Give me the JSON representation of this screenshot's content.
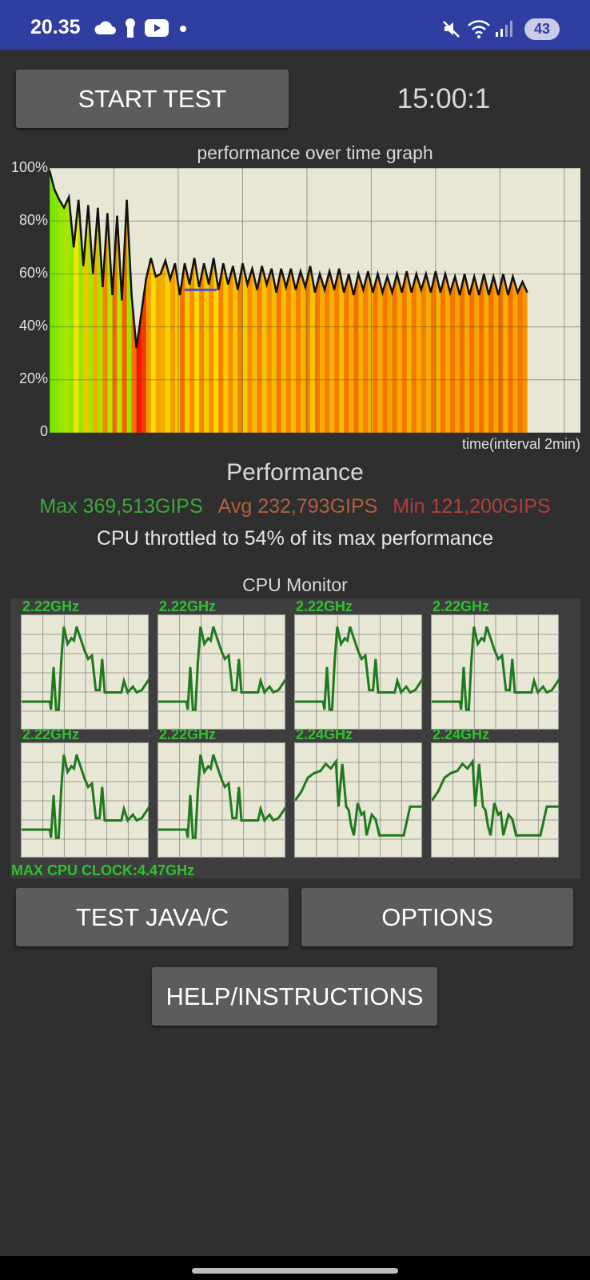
{
  "status_bar": {
    "time": "20.35",
    "left_icons": [
      "cloud-icon",
      "keyhole-icon",
      "youtube-icon",
      "dot-icon"
    ],
    "right_icons": [
      "mute-icon",
      "wifi-icon",
      "signal-icon"
    ],
    "battery": "43"
  },
  "controls": {
    "start_test": "START TEST",
    "timer": "15:00:1",
    "test_java_c": "TEST JAVA/C",
    "options": "OPTIONS",
    "help": "HELP/INSTRUCTIONS"
  },
  "performance_graph": {
    "title": "performance over time graph",
    "y_ticks": [
      "100%",
      "80%",
      "60%",
      "40%",
      "20%",
      "0"
    ],
    "x_label": "time(interval 2min)"
  },
  "performance": {
    "title": "Performance",
    "max": "Max 369,513GIPS",
    "avg": "Avg 232,793GIPS",
    "min": "Min 121,200GIPS",
    "throttle_text": "CPU throttled to 54% of its max performance"
  },
  "cpu_monitor": {
    "title": "CPU Monitor",
    "cores": [
      {
        "freq": "2.22GHz"
      },
      {
        "freq": "2.22GHz"
      },
      {
        "freq": "2.22GHz"
      },
      {
        "freq": "2.22GHz"
      },
      {
        "freq": "2.22GHz"
      },
      {
        "freq": "2.22GHz"
      },
      {
        "freq": "2.24GHz"
      },
      {
        "freq": "2.24GHz"
      }
    ],
    "max_clock": "MAX CPU CLOCK:4.47GHz"
  },
  "colors": {
    "status_bar": "#2f3ea0",
    "background": "#2f2f2f",
    "button": "#5c5c5c",
    "plot_bg": "#e8e6d4",
    "max_green": "#3aa83a",
    "avg_brown": "#b0603c",
    "min_red": "#b0403a",
    "freq_green": "#2fc12f",
    "cpu_line": "#1e7a1e"
  },
  "chart_data": {
    "type": "area",
    "title": "performance over time graph",
    "xlabel": "time(interval 2min)",
    "ylabel": "",
    "ylim": [
      0,
      100
    ],
    "xlim": [
      0,
      16.5
    ],
    "grid": true,
    "x": [
      0,
      0.15,
      0.3,
      0.45,
      0.6,
      0.75,
      0.9,
      1.05,
      1.2,
      1.35,
      1.5,
      1.65,
      1.8,
      1.95,
      2.1,
      2.25,
      2.4,
      2.55,
      2.7,
      2.85,
      3.0,
      3.15,
      3.3,
      3.45,
      3.6,
      3.75,
      3.9,
      4.05,
      4.2,
      4.35,
      4.5,
      4.65,
      4.8,
      4.95,
      5.1,
      5.25,
      5.4,
      5.55,
      5.7,
      5.85,
      6.0,
      6.15,
      6.3,
      6.45,
      6.6,
      6.75,
      6.9,
      7.05,
      7.2,
      7.35,
      7.5,
      7.65,
      7.8,
      7.95,
      8.1,
      8.25,
      8.4,
      8.55,
      8.7,
      8.85,
      9.0,
      9.15,
      9.3,
      9.45,
      9.6,
      9.75,
      9.9,
      10.05,
      10.2,
      10.35,
      10.5,
      10.65,
      10.8,
      10.95,
      11.1,
      11.25,
      11.4,
      11.55,
      11.7,
      11.85,
      12.0,
      12.15,
      12.3,
      12.45,
      12.6,
      12.75,
      12.9,
      13.05,
      13.2,
      13.35,
      13.5,
      13.65,
      13.8,
      13.95,
      14.1,
      14.25,
      14.4,
      14.55,
      14.7,
      14.85
    ],
    "values": [
      99,
      92,
      88,
      85,
      89,
      70,
      88,
      63,
      86,
      60,
      85,
      55,
      83,
      52,
      82,
      50,
      88,
      52,
      32,
      45,
      58,
      66,
      59,
      60,
      65,
      58,
      64,
      52,
      64,
      56,
      66,
      55,
      64,
      56,
      66,
      54,
      64,
      56,
      63,
      54,
      64,
      56,
      62,
      54,
      63,
      56,
      62,
      53,
      62,
      55,
      62,
      54,
      61,
      55,
      63,
      53,
      60,
      54,
      61,
      54,
      62,
      53,
      60,
      52,
      60,
      54,
      61,
      53,
      60,
      53,
      59,
      53,
      60,
      53,
      61,
      53,
      60,
      54,
      60,
      53,
      61,
      53,
      60,
      53,
      59,
      52,
      60,
      52,
      59,
      52,
      60,
      52,
      59,
      52,
      60,
      52,
      59,
      53,
      57,
      53
    ],
    "reference_line": 54
  }
}
